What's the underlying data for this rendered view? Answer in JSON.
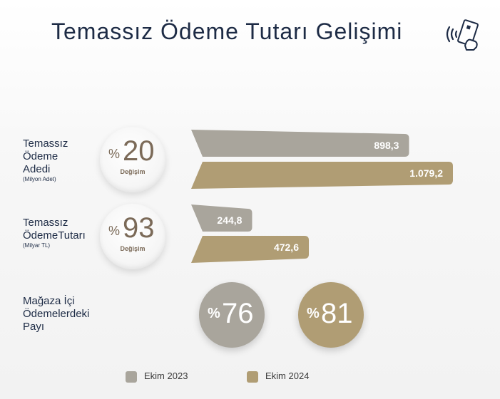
{
  "title": "Temassız Ödeme Tutarı Gelişimi",
  "icon": "contactless-payment-icon",
  "colors": {
    "ekim_2023": "#a9a59c",
    "ekim_2024": "#b09d74"
  },
  "chart_data": {
    "type": "bar",
    "orientation": "horizontal",
    "legend": [
      {
        "name": "Ekim 2023",
        "color": "#a9a59c"
      },
      {
        "name": "Ekim 2024",
        "color": "#b09d74"
      }
    ],
    "groups": [
      {
        "label_lines": [
          "Temassız",
          "Ödeme",
          "Adedi"
        ],
        "unit": "(Milyon Adet)",
        "change_prefix": "%",
        "change_value": "20",
        "change_label": "Değişim",
        "values": [
          898.3,
          1079.2
        ],
        "value_labels": [
          "898,3",
          "1.079,2"
        ]
      },
      {
        "label_lines": [
          "Temassız",
          "ÖdemeTutarı"
        ],
        "unit": "(Milyar TL)",
        "change_prefix": "%",
        "change_value": "93",
        "change_label": "Değişim",
        "values": [
          244.8,
          472.6
        ],
        "value_labels": [
          "244,8",
          "472,6"
        ]
      }
    ],
    "share": {
      "label_lines": [
        "Mağaza İçi",
        "Ödemelerdeki",
        "Payı"
      ],
      "prefix": "%",
      "values": [
        "76",
        "81"
      ]
    }
  }
}
